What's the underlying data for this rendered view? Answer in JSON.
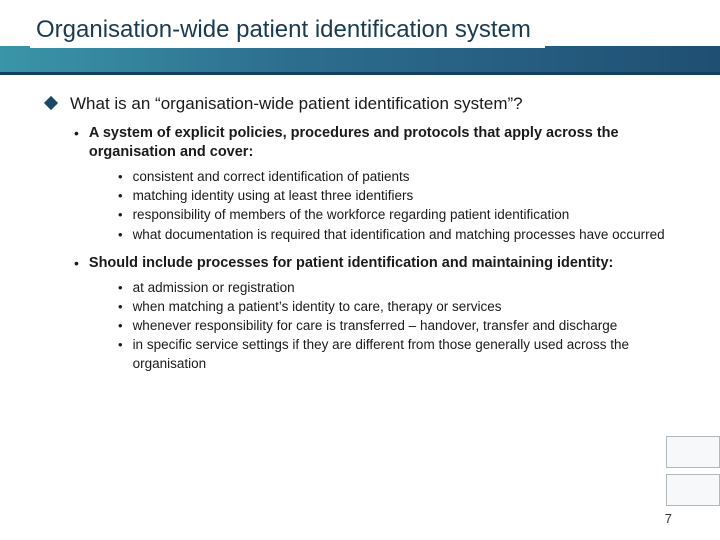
{
  "colors": {
    "band_gradient_start": "#3a95a8",
    "band_gradient_end": "#1f4f73",
    "separator": "#15415d",
    "bullet_diamond": "#1a4866",
    "text": "#1a1a1a"
  },
  "title": "Organisation-wide patient identification system",
  "level1": "What is an “organisation-wide patient identification system”?",
  "sections": [
    {
      "heading": "A system of explicit policies, procedures and protocols that apply across the organisation and cover:",
      "items": [
        "consistent and correct identification of patients",
        "matching identity using at least three identifiers",
        "responsibility of members of the workforce regarding patient identification",
        "what documentation is required that identification and matching processes have occurred"
      ]
    },
    {
      "heading": "Should include processes for patient identification and maintaining identity:",
      "items": [
        "at admission or registration",
        "when matching a patient’s identity to care, therapy or services",
        "whenever responsibility for care is transferred – handover, transfer and discharge",
        "in specific service settings if they are different from those generally used across the organisation"
      ]
    }
  ],
  "page_number": "7"
}
